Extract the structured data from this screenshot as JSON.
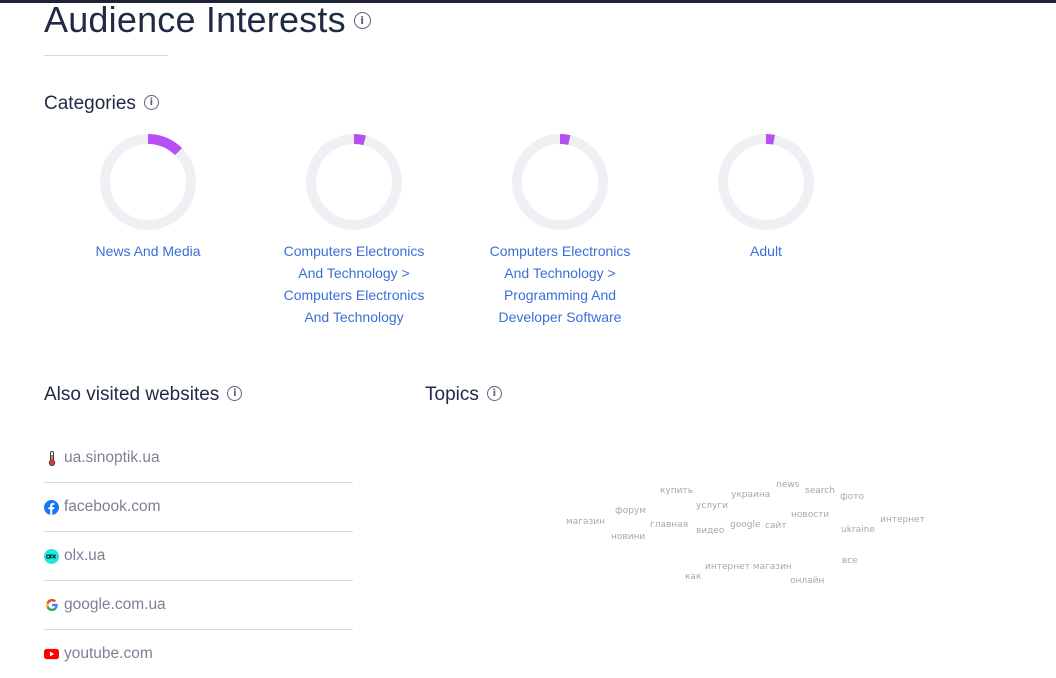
{
  "page": {
    "title": "Audience Interests"
  },
  "categories": {
    "heading": "Categories",
    "items": [
      {
        "label": "News And Media",
        "share": 0.125
      },
      {
        "label": "Computers Electronics And Technology > Computers Electronics And Technology",
        "share": 0.04
      },
      {
        "label": "Computers Electronics And Technology > Programming And Developer Software",
        "share": 0.035
      },
      {
        "label": "Adult",
        "share": 0.03
      }
    ],
    "ring_color": "#b74ff2",
    "track_color": "#eef0f4"
  },
  "also_visited": {
    "heading": "Also visited websites",
    "sites": [
      {
        "domain": "ua.sinoptik.ua",
        "icon": "thermometer-icon"
      },
      {
        "domain": "facebook.com",
        "icon": "facebook-icon"
      },
      {
        "domain": "olx.ua",
        "icon": "olx-icon"
      },
      {
        "domain": "google.com.ua",
        "icon": "google-icon"
      },
      {
        "domain": "youtube.com",
        "icon": "youtube-icon"
      }
    ]
  },
  "topics": {
    "heading": "Topics",
    "words": [
      "купить",
      "news",
      "search",
      "украина",
      "фото",
      "форум",
      "услуги",
      "новости",
      "интернет",
      "магазин",
      "главная",
      "google",
      "сайт",
      "ukraine",
      "новини",
      "видео",
      "все",
      "интернет магазин",
      "как",
      "онлайн"
    ]
  }
}
